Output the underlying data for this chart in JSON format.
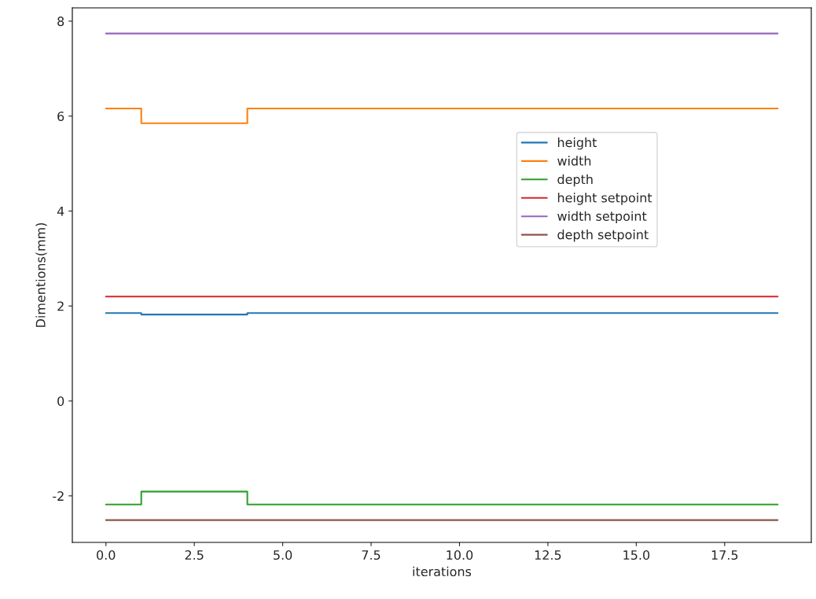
{
  "chart_data": {
    "type": "step",
    "xlabel": "iterations",
    "ylabel": "Dimentions(mm)",
    "x": [
      0,
      1,
      2,
      3,
      4,
      5,
      6,
      7,
      8,
      9,
      10,
      11,
      12,
      13,
      14,
      15,
      16,
      17,
      18,
      19
    ],
    "series": [
      {
        "name": "height",
        "color": "#1f77b4",
        "values": [
          1.85,
          1.82,
          1.82,
          1.82,
          1.85,
          1.85,
          1.85,
          1.85,
          1.85,
          1.85,
          1.85,
          1.85,
          1.85,
          1.85,
          1.85,
          1.85,
          1.85,
          1.85,
          1.85,
          1.85
        ]
      },
      {
        "name": "width",
        "color": "#ff7f0e",
        "values": [
          6.16,
          5.85,
          5.85,
          5.85,
          6.16,
          6.16,
          6.16,
          6.16,
          6.16,
          6.16,
          6.16,
          6.16,
          6.16,
          6.16,
          6.16,
          6.16,
          6.16,
          6.16,
          6.16,
          6.16
        ]
      },
      {
        "name": "depth",
        "color": "#2ca02c",
        "values": [
          -2.18,
          -1.91,
          -1.91,
          -1.91,
          -2.18,
          -2.18,
          -2.18,
          -2.18,
          -2.18,
          -2.18,
          -2.18,
          -2.18,
          -2.18,
          -2.18,
          -2.18,
          -2.18,
          -2.18,
          -2.18,
          -2.18,
          -2.18
        ]
      },
      {
        "name": "height setpoint",
        "color": "#d62728",
        "values": [
          2.2,
          2.2,
          2.2,
          2.2,
          2.2,
          2.2,
          2.2,
          2.2,
          2.2,
          2.2,
          2.2,
          2.2,
          2.2,
          2.2,
          2.2,
          2.2,
          2.2,
          2.2,
          2.2,
          2.2
        ]
      },
      {
        "name": "width setpoint",
        "color": "#9467bd",
        "values": [
          7.74,
          7.74,
          7.74,
          7.74,
          7.74,
          7.74,
          7.74,
          7.74,
          7.74,
          7.74,
          7.74,
          7.74,
          7.74,
          7.74,
          7.74,
          7.74,
          7.74,
          7.74,
          7.74,
          7.74
        ]
      },
      {
        "name": "depth setpoint",
        "color": "#8c564b",
        "values": [
          -2.51,
          -2.51,
          -2.51,
          -2.51,
          -2.51,
          -2.51,
          -2.51,
          -2.51,
          -2.51,
          -2.51,
          -2.51,
          -2.51,
          -2.51,
          -2.51,
          -2.51,
          -2.51,
          -2.51,
          -2.51,
          -2.51,
          -2.51
        ]
      }
    ],
    "xlim": [
      -0.95,
      19.95
    ],
    "xticks": [
      {
        "value": 0,
        "label": "0.0"
      },
      {
        "value": 2.5,
        "label": "2.5"
      },
      {
        "value": 5,
        "label": "5.0"
      },
      {
        "value": 7.5,
        "label": "7.5"
      },
      {
        "value": 10,
        "label": "10.0"
      },
      {
        "value": 12.5,
        "label": "12.5"
      },
      {
        "value": 15,
        "label": "15.0"
      },
      {
        "value": 17.5,
        "label": "17.5"
      }
    ],
    "ylim": [
      -2.98,
      8.28
    ],
    "yticks": [
      -2,
      0,
      2,
      4,
      6,
      8
    ],
    "legend": "center right",
    "grid": false,
    "marker": "none",
    "line_style": "solid"
  }
}
